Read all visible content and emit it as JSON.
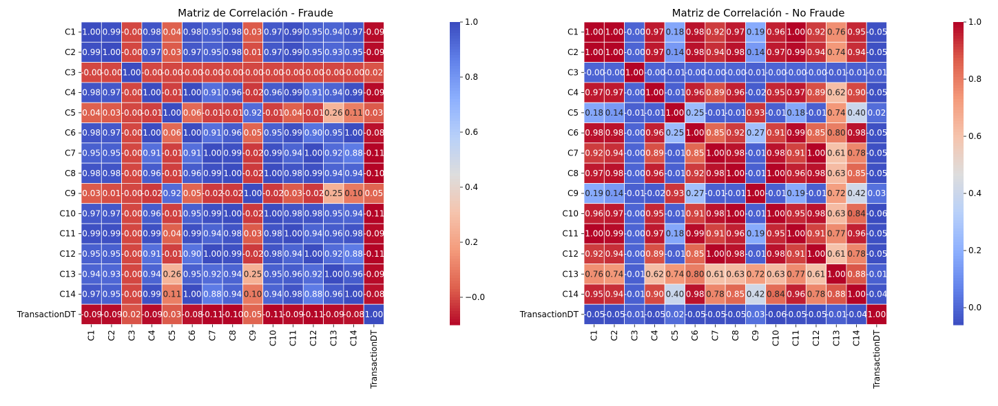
{
  "chart_data": [
    {
      "type": "heatmap",
      "title": "Matriz de Correlación - Fraude",
      "xlabel": "",
      "ylabel": "",
      "colormap": "coolwarm_r",
      "vmin": -0.1,
      "vmax": 1.0,
      "colorbar_ticks": [
        "−0.0",
        "0.2",
        "0.4",
        "0.6",
        "0.8",
        "1.0"
      ],
      "colorbar_tick_values": [
        0.0,
        0.2,
        0.4,
        0.6,
        0.8,
        1.0
      ],
      "labels": [
        "C1",
        "C2",
        "C3",
        "C4",
        "C5",
        "C6",
        "C7",
        "C8",
        "C9",
        "C10",
        "C11",
        "C12",
        "C13",
        "C14",
        "TransactionDT"
      ],
      "values": [
        [
          1.0,
          0.99,
          -0.0,
          0.98,
          0.04,
          0.98,
          0.95,
          0.98,
          0.03,
          0.97,
          0.99,
          0.95,
          0.94,
          0.97,
          -0.09
        ],
        [
          0.99,
          1.0,
          -0.0,
          0.97,
          0.03,
          0.97,
          0.95,
          0.98,
          0.01,
          0.97,
          0.99,
          0.95,
          0.93,
          0.95,
          -0.09
        ],
        [
          -0.0,
          -0.0,
          1.0,
          -0.0,
          -0.0,
          -0.0,
          -0.0,
          -0.0,
          -0.0,
          -0.0,
          -0.0,
          -0.0,
          -0.0,
          -0.0,
          0.02
        ],
        [
          0.98,
          0.97,
          -0.0,
          1.0,
          -0.01,
          1.0,
          0.91,
          0.96,
          -0.02,
          0.96,
          0.99,
          0.91,
          0.94,
          0.99,
          -0.09
        ],
        [
          0.04,
          0.03,
          -0.0,
          -0.01,
          1.0,
          0.06,
          -0.01,
          -0.01,
          0.92,
          -0.01,
          0.04,
          -0.01,
          0.26,
          0.11,
          0.03
        ],
        [
          0.98,
          0.97,
          -0.0,
          1.0,
          0.06,
          1.0,
          0.91,
          0.96,
          0.05,
          0.95,
          0.99,
          0.9,
          0.95,
          1.0,
          -0.08
        ],
        [
          0.95,
          0.95,
          -0.0,
          0.91,
          -0.01,
          0.91,
          1.0,
          0.99,
          -0.02,
          0.99,
          0.94,
          1.0,
          0.92,
          0.88,
          -0.11
        ],
        [
          0.98,
          0.98,
          -0.0,
          0.96,
          -0.01,
          0.96,
          0.99,
          1.0,
          -0.02,
          1.0,
          0.98,
          0.99,
          0.94,
          0.94,
          -0.1
        ],
        [
          0.03,
          0.01,
          -0.0,
          -0.02,
          0.92,
          0.05,
          -0.02,
          -0.02,
          1.0,
          -0.02,
          0.03,
          -0.02,
          0.25,
          0.1,
          0.05
        ],
        [
          0.97,
          0.97,
          -0.0,
          0.96,
          -0.01,
          0.95,
          0.99,
          1.0,
          -0.02,
          1.0,
          0.98,
          0.98,
          0.95,
          0.94,
          -0.11
        ],
        [
          0.99,
          0.99,
          -0.0,
          0.99,
          0.04,
          0.99,
          0.94,
          0.98,
          0.03,
          0.98,
          1.0,
          0.94,
          0.96,
          0.98,
          -0.09
        ],
        [
          0.95,
          0.95,
          -0.0,
          0.91,
          -0.01,
          0.9,
          1.0,
          0.99,
          -0.02,
          0.98,
          0.94,
          1.0,
          0.92,
          0.88,
          -0.11
        ],
        [
          0.94,
          0.93,
          -0.0,
          0.94,
          0.26,
          0.95,
          0.92,
          0.94,
          0.25,
          0.95,
          0.96,
          0.92,
          1.0,
          0.96,
          -0.09
        ],
        [
          0.97,
          0.95,
          -0.0,
          0.99,
          0.11,
          1.0,
          0.88,
          0.94,
          0.1,
          0.94,
          0.98,
          0.88,
          0.96,
          1.0,
          -0.08
        ],
        [
          -0.09,
          -0.09,
          0.02,
          -0.09,
          0.03,
          -0.08,
          -0.11,
          -0.1,
          0.05,
          -0.11,
          -0.09,
          -0.11,
          -0.09,
          -0.08,
          1.0
        ]
      ]
    },
    {
      "type": "heatmap",
      "title": "Matriz de Correlación - No Fraude",
      "xlabel": "",
      "ylabel": "",
      "colormap": "coolwarm",
      "vmin": -0.06,
      "vmax": 1.0,
      "colorbar_ticks": [
        "0.0",
        "0.2",
        "0.4",
        "0.6",
        "0.8",
        "1.0"
      ],
      "colorbar_tick_values": [
        0.0,
        0.2,
        0.4,
        0.6,
        0.8,
        1.0
      ],
      "labels": [
        "C1",
        "C2",
        "C3",
        "C4",
        "C5",
        "C6",
        "C7",
        "C8",
        "C9",
        "C10",
        "C11",
        "C12",
        "C13",
        "C14",
        "TransactionDT"
      ],
      "values": [
        [
          1.0,
          1.0,
          -0.0,
          0.97,
          0.18,
          0.98,
          0.92,
          0.97,
          0.19,
          0.96,
          1.0,
          0.92,
          0.76,
          0.95,
          -0.05
        ],
        [
          1.0,
          1.0,
          -0.0,
          0.97,
          0.14,
          0.98,
          0.94,
          0.98,
          0.14,
          0.97,
          0.99,
          0.94,
          0.74,
          0.94,
          -0.05
        ],
        [
          -0.0,
          -0.0,
          1.0,
          -0.0,
          -0.01,
          -0.0,
          -0.0,
          -0.0,
          -0.01,
          -0.0,
          -0.0,
          -0.0,
          -0.01,
          -0.01,
          -0.01
        ],
        [
          0.97,
          0.97,
          -0.0,
          1.0,
          -0.01,
          0.96,
          0.89,
          0.96,
          -0.02,
          0.95,
          0.97,
          0.89,
          0.62,
          0.9,
          -0.05
        ],
        [
          0.18,
          0.14,
          -0.01,
          -0.01,
          1.0,
          0.25,
          -0.01,
          -0.01,
          0.93,
          -0.01,
          0.18,
          -0.01,
          0.74,
          0.4,
          0.02
        ],
        [
          0.98,
          0.98,
          -0.0,
          0.96,
          0.25,
          1.0,
          0.85,
          0.92,
          0.27,
          0.91,
          0.99,
          0.85,
          0.8,
          0.98,
          -0.05
        ],
        [
          0.92,
          0.94,
          -0.0,
          0.89,
          -0.01,
          0.85,
          1.0,
          0.98,
          -0.01,
          0.98,
          0.91,
          1.0,
          0.61,
          0.78,
          -0.05
        ],
        [
          0.97,
          0.98,
          -0.0,
          0.96,
          -0.01,
          0.92,
          0.98,
          1.0,
          -0.01,
          1.0,
          0.96,
          0.98,
          0.63,
          0.85,
          -0.05
        ],
        [
          0.19,
          0.14,
          -0.01,
          -0.02,
          0.93,
          0.27,
          -0.01,
          -0.01,
          1.0,
          -0.01,
          0.19,
          -0.01,
          0.72,
          0.42,
          0.03
        ],
        [
          0.96,
          0.97,
          -0.0,
          0.95,
          -0.01,
          0.91,
          0.98,
          1.0,
          -0.01,
          1.0,
          0.95,
          0.98,
          0.63,
          0.84,
          -0.06
        ],
        [
          1.0,
          0.99,
          -0.0,
          0.97,
          0.18,
          0.99,
          0.91,
          0.96,
          0.19,
          0.95,
          1.0,
          0.91,
          0.77,
          0.96,
          -0.05
        ],
        [
          0.92,
          0.94,
          -0.0,
          0.89,
          -0.01,
          0.85,
          1.0,
          0.98,
          -0.01,
          0.98,
          0.91,
          1.0,
          0.61,
          0.78,
          -0.05
        ],
        [
          0.76,
          0.74,
          -0.01,
          0.62,
          0.74,
          0.8,
          0.61,
          0.63,
          0.72,
          0.63,
          0.77,
          0.61,
          1.0,
          0.88,
          -0.01
        ],
        [
          0.95,
          0.94,
          -0.01,
          0.9,
          0.4,
          0.98,
          0.78,
          0.85,
          0.42,
          0.84,
          0.96,
          0.78,
          0.88,
          1.0,
          -0.04
        ],
        [
          -0.05,
          -0.05,
          -0.01,
          -0.05,
          0.02,
          -0.05,
          -0.05,
          -0.05,
          0.03,
          -0.06,
          -0.05,
          -0.05,
          -0.01,
          -0.04,
          1.0
        ]
      ]
    }
  ]
}
